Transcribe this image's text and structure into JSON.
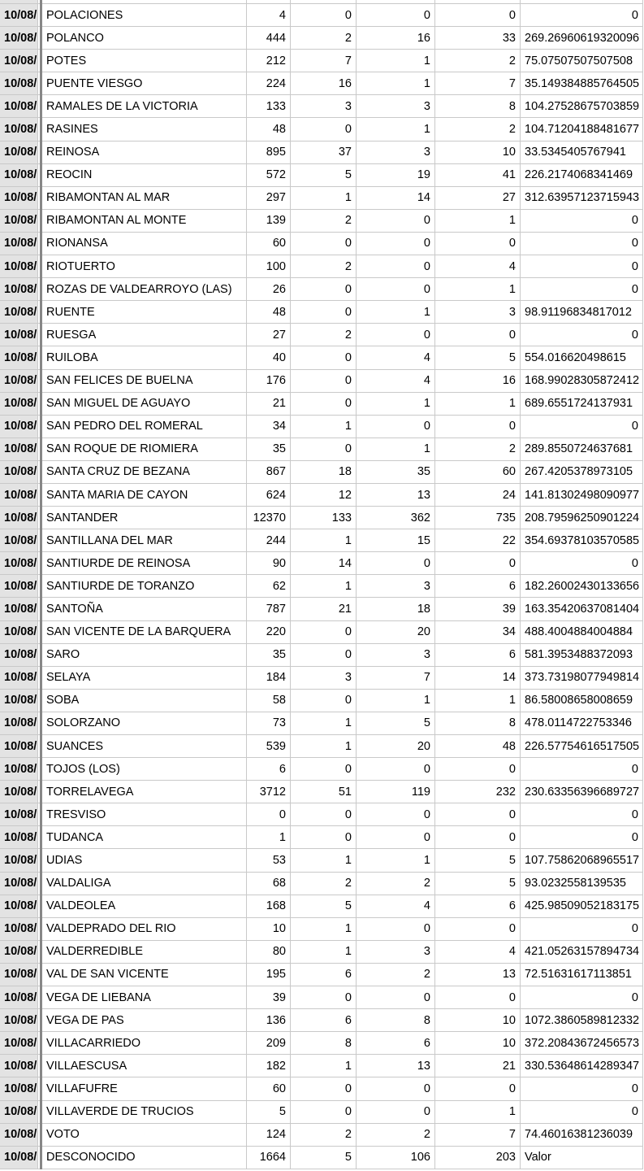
{
  "table": {
    "frozen_date_value": "10/08/",
    "rows": [
      [
        "10/08/",
        "POLACIONES",
        "4",
        "0",
        "0",
        "0",
        "0"
      ],
      [
        "10/08/",
        "POLANCO",
        "444",
        "2",
        "16",
        "33",
        "269.26960619320096"
      ],
      [
        "10/08/",
        "POTES",
        "212",
        "7",
        "1",
        "2",
        "75.07507507507508"
      ],
      [
        "10/08/",
        "PUENTE VIESGO",
        "224",
        "16",
        "1",
        "7",
        "35.149384885764505"
      ],
      [
        "10/08/",
        "RAMALES DE LA VICTORIA",
        "133",
        "3",
        "3",
        "8",
        "104.27528675703859"
      ],
      [
        "10/08/",
        "RASINES",
        "48",
        "0",
        "1",
        "2",
        "104.71204188481677"
      ],
      [
        "10/08/",
        "REINOSA",
        "895",
        "37",
        "3",
        "10",
        "33.5345405767941"
      ],
      [
        "10/08/",
        "REOCIN",
        "572",
        "5",
        "19",
        "41",
        "226.2174068341469"
      ],
      [
        "10/08/",
        "RIBAMONTAN AL MAR",
        "297",
        "1",
        "14",
        "27",
        "312.63957123715943"
      ],
      [
        "10/08/",
        "RIBAMONTAN AL MONTE",
        "139",
        "2",
        "0",
        "1",
        "0"
      ],
      [
        "10/08/",
        "RIONANSA",
        "60",
        "0",
        "0",
        "0",
        "0"
      ],
      [
        "10/08/",
        "RIOTUERTO",
        "100",
        "2",
        "0",
        "4",
        "0"
      ],
      [
        "10/08/",
        "ROZAS DE VALDEARROYO (LAS)",
        "26",
        "0",
        "0",
        "1",
        "0"
      ],
      [
        "10/08/",
        "RUENTE",
        "48",
        "0",
        "1",
        "3",
        "98.91196834817012"
      ],
      [
        "10/08/",
        "RUESGA",
        "27",
        "2",
        "0",
        "0",
        "0"
      ],
      [
        "10/08/",
        "RUILOBA",
        "40",
        "0",
        "4",
        "5",
        "554.016620498615"
      ],
      [
        "10/08/",
        "SAN FELICES DE BUELNA",
        "176",
        "0",
        "4",
        "16",
        "168.99028305872412"
      ],
      [
        "10/08/",
        "SAN MIGUEL DE AGUAYO",
        "21",
        "0",
        "1",
        "1",
        "689.6551724137931"
      ],
      [
        "10/08/",
        "SAN PEDRO DEL ROMERAL",
        "34",
        "1",
        "0",
        "0",
        "0"
      ],
      [
        "10/08/",
        "SAN ROQUE DE RIOMIERA",
        "35",
        "0",
        "1",
        "2",
        "289.8550724637681"
      ],
      [
        "10/08/",
        "SANTA CRUZ DE BEZANA",
        "867",
        "18",
        "35",
        "60",
        "267.4205378973105"
      ],
      [
        "10/08/",
        "SANTA MARIA DE CAYON",
        "624",
        "12",
        "13",
        "24",
        "141.81302498090977"
      ],
      [
        "10/08/",
        "SANTANDER",
        "12370",
        "133",
        "362",
        "735",
        "208.79596250901224"
      ],
      [
        "10/08/",
        "SANTILLANA DEL MAR",
        "244",
        "1",
        "15",
        "22",
        "354.69378103570585"
      ],
      [
        "10/08/",
        "SANTIURDE DE REINOSA",
        "90",
        "14",
        "0",
        "0",
        "0"
      ],
      [
        "10/08/",
        "SANTIURDE DE TORANZO",
        "62",
        "1",
        "3",
        "6",
        "182.26002430133656"
      ],
      [
        "10/08/",
        "SANTOÑA",
        "787",
        "21",
        "18",
        "39",
        "163.35420637081404"
      ],
      [
        "10/08/",
        "SAN VICENTE DE LA BARQUERA",
        "220",
        "0",
        "20",
        "34",
        "488.4004884004884"
      ],
      [
        "10/08/",
        "SARO",
        "35",
        "0",
        "3",
        "6",
        "581.3953488372093"
      ],
      [
        "10/08/",
        "SELAYA",
        "184",
        "3",
        "7",
        "14",
        "373.73198077949814"
      ],
      [
        "10/08/",
        "SOBA",
        "58",
        "0",
        "1",
        "1",
        "86.58008658008659"
      ],
      [
        "10/08/",
        "SOLORZANO",
        "73",
        "1",
        "5",
        "8",
        "478.0114722753346"
      ],
      [
        "10/08/",
        "SUANCES",
        "539",
        "1",
        "20",
        "48",
        "226.57754616517505"
      ],
      [
        "10/08/",
        "TOJOS (LOS)",
        "6",
        "0",
        "0",
        "0",
        "0"
      ],
      [
        "10/08/",
        "TORRELAVEGA",
        "3712",
        "51",
        "119",
        "232",
        "230.63356396689727"
      ],
      [
        "10/08/",
        "TRESVISO",
        "0",
        "0",
        "0",
        "0",
        "0"
      ],
      [
        "10/08/",
        "TUDANCA",
        "1",
        "0",
        "0",
        "0",
        "0"
      ],
      [
        "10/08/",
        "UDIAS",
        "53",
        "1",
        "1",
        "5",
        "107.75862068965517"
      ],
      [
        "10/08/",
        "VALDALIGA",
        "68",
        "2",
        "2",
        "5",
        "93.0232558139535"
      ],
      [
        "10/08/",
        "VALDEOLEA",
        "168",
        "5",
        "4",
        "6",
        "425.98509052183175"
      ],
      [
        "10/08/",
        "VALDEPRADO DEL RIO",
        "10",
        "1",
        "0",
        "0",
        "0"
      ],
      [
        "10/08/",
        "VALDERREDIBLE",
        "80",
        "1",
        "3",
        "4",
        "421.05263157894734"
      ],
      [
        "10/08/",
        "VAL DE SAN VICENTE",
        "195",
        "6",
        "2",
        "13",
        "72.51631617113851"
      ],
      [
        "10/08/",
        "VEGA DE LIEBANA",
        "39",
        "0",
        "0",
        "0",
        "0"
      ],
      [
        "10/08/",
        "VEGA DE PAS",
        "136",
        "6",
        "8",
        "10",
        "1072.3860589812332"
      ],
      [
        "10/08/",
        "VILLACARRIEDO",
        "209",
        "8",
        "6",
        "10",
        "372.20843672456573"
      ],
      [
        "10/08/",
        "VILLAESCUSA",
        "182",
        "1",
        "13",
        "21",
        "330.53648614289347"
      ],
      [
        "10/08/",
        "VILLAFUFRE",
        "60",
        "0",
        "0",
        "0",
        "0"
      ],
      [
        "10/08/",
        "VILLAVERDE DE TRUCIOS",
        "5",
        "0",
        "0",
        "1",
        "0"
      ],
      [
        "10/08/",
        "VOTO",
        "124",
        "2",
        "2",
        "7",
        "74.46016381236039"
      ],
      [
        "10/08/",
        "DESCONOCIDO",
        "1664",
        "5",
        "106",
        "203",
        "Valor"
      ]
    ]
  },
  "colors": {
    "grid_line": "#c9c9c9",
    "frozen_col_bg": "#e3e3e3",
    "freeze_divider": "#878787",
    "cell_bg": "#ffffff",
    "text": "#000000"
  }
}
